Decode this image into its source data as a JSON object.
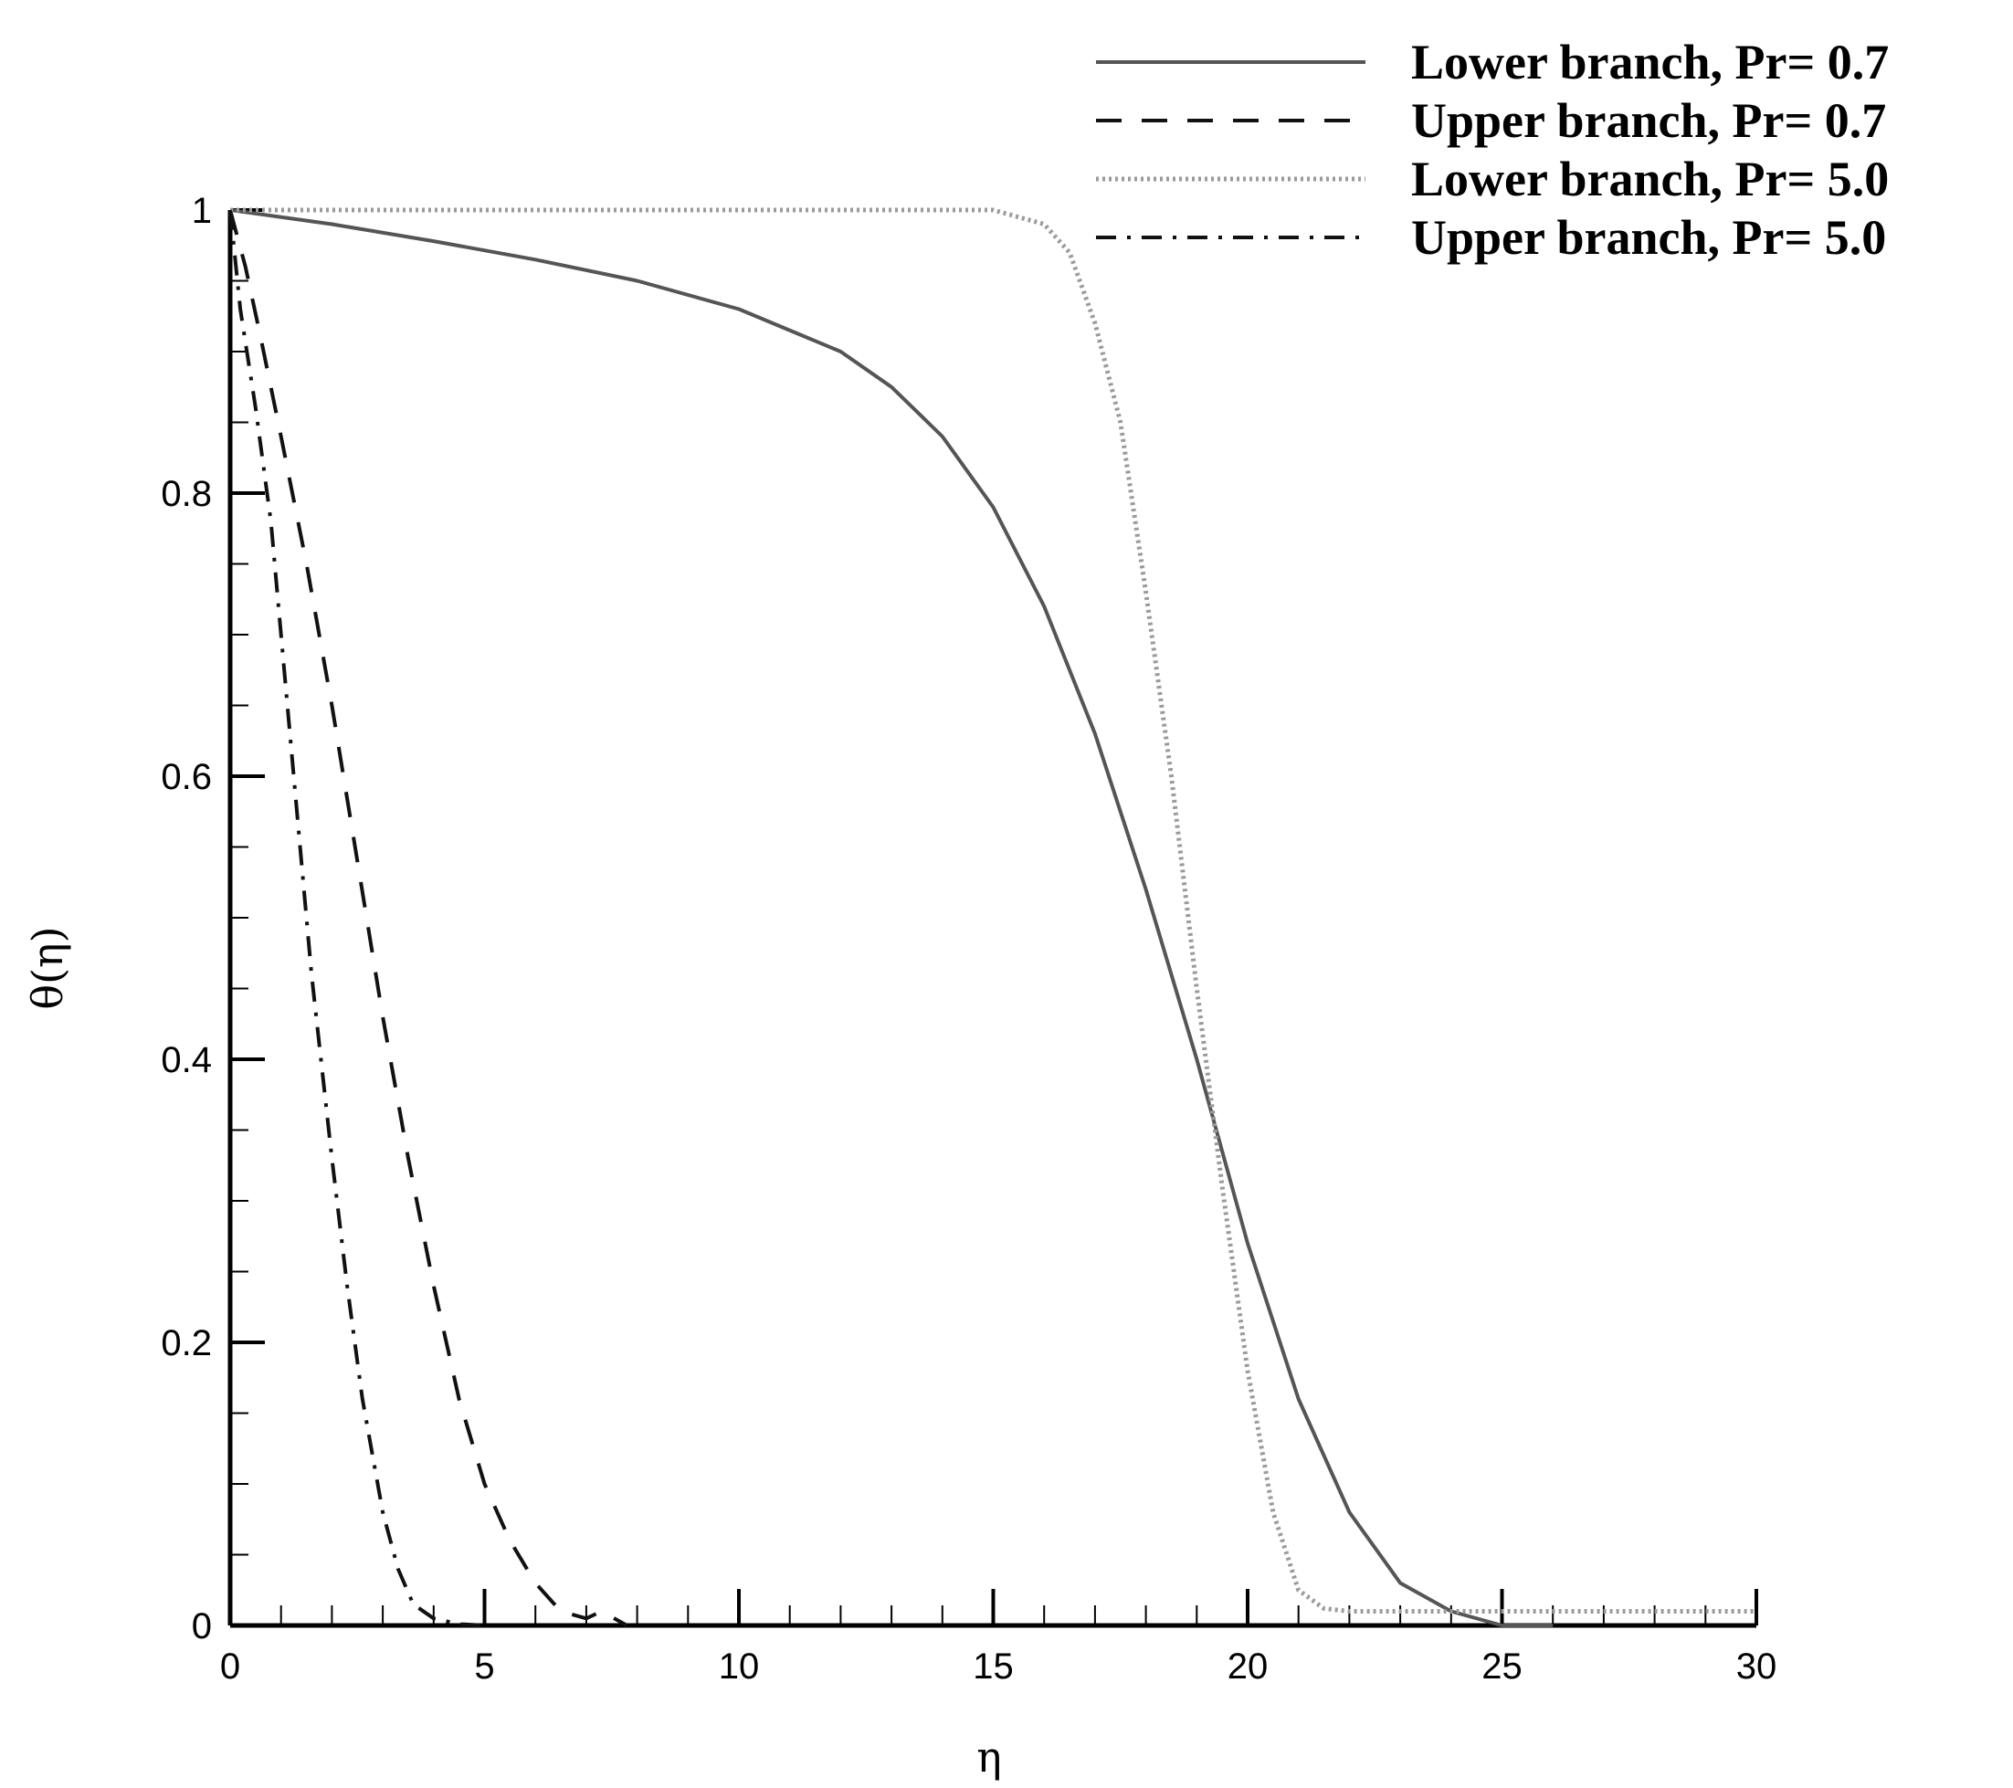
{
  "chart_data": {
    "type": "line",
    "title": "",
    "xlabel": "η",
    "ylabel": "θ(η)",
    "xlim": [
      0,
      30
    ],
    "ylim": [
      0,
      1
    ],
    "x_ticks": [
      0,
      5,
      10,
      15,
      20,
      25,
      30
    ],
    "y_ticks": [
      0,
      0.2,
      0.4,
      0.6,
      0.8,
      1
    ],
    "x_tick_labels": [
      "0",
      "5",
      "10",
      "15",
      "20",
      "25",
      "30"
    ],
    "y_tick_labels": [
      "0",
      "0.2",
      "0.4",
      "0.6",
      "0.8",
      "1"
    ],
    "grid": false,
    "legend_position": "top-right",
    "series": [
      {
        "name": "Lower branch, Pr= 0.7",
        "style": "solid",
        "color": "#555555",
        "x": [
          0,
          2,
          4,
          6,
          8,
          10,
          12,
          13,
          14,
          15,
          16,
          17,
          18,
          19,
          20,
          21,
          22,
          23,
          24,
          25,
          26
        ],
        "y": [
          1.0,
          0.99,
          0.978,
          0.965,
          0.95,
          0.93,
          0.9,
          0.875,
          0.84,
          0.79,
          0.72,
          0.63,
          0.52,
          0.4,
          0.27,
          0.16,
          0.08,
          0.03,
          0.01,
          0.0,
          0.0
        ]
      },
      {
        "name": "Upper branch, Pr= 0.7",
        "style": "dashed",
        "color": "#111111",
        "x": [
          0,
          0.3,
          0.6,
          1.0,
          1.5,
          2.0,
          2.5,
          3.0,
          3.5,
          4.0,
          4.5,
          5.0,
          5.5,
          6.0,
          6.5,
          7.0,
          7.3,
          7.8
        ],
        "y": [
          1.0,
          0.96,
          0.91,
          0.84,
          0.75,
          0.65,
          0.54,
          0.43,
          0.33,
          0.24,
          0.16,
          0.1,
          0.06,
          0.03,
          0.01,
          0.005,
          0.01,
          0.0
        ]
      },
      {
        "name": "Lower branch, Pr= 5.0",
        "style": "dotted",
        "color": "#9a9a9a",
        "x": [
          0,
          5,
          10,
          15,
          16,
          16.5,
          17,
          17.5,
          18,
          18.5,
          19,
          19.5,
          20,
          20.5,
          21,
          21.5,
          22,
          25,
          30
        ],
        "y": [
          1.0,
          1.0,
          1.0,
          1.0,
          0.99,
          0.97,
          0.92,
          0.85,
          0.73,
          0.6,
          0.45,
          0.31,
          0.18,
          0.08,
          0.025,
          0.012,
          0.01,
          0.01,
          0.01
        ]
      },
      {
        "name": "Upper branch, Pr= 5.0",
        "style": "dashdot",
        "color": "#111111",
        "x": [
          0,
          0.2,
          0.5,
          0.8,
          1.0,
          1.3,
          1.6,
          2.0,
          2.3,
          2.6,
          3.0,
          3.3,
          3.6,
          4.0,
          4.5,
          5.0
        ],
        "y": [
          1.0,
          0.93,
          0.86,
          0.78,
          0.7,
          0.58,
          0.46,
          0.33,
          0.24,
          0.16,
          0.08,
          0.04,
          0.015,
          0.005,
          0.001,
          0.0
        ]
      }
    ]
  }
}
